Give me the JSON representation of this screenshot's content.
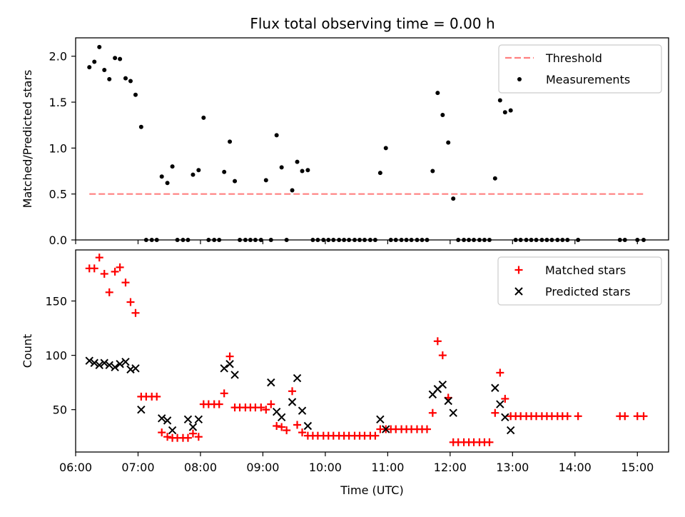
{
  "title": "Flux total observing time = 0.00 h",
  "chart_data": [
    {
      "type": "scatter",
      "panel": "top",
      "ylabel": "Matched/Predicted stars",
      "ylim": [
        0,
        2.2
      ],
      "yticks": [
        0.0,
        0.5,
        1.0,
        1.5,
        2.0
      ],
      "ytick_labels": [
        "0.0",
        "0.5",
        "1.0",
        "1.5",
        "2.0"
      ],
      "xlim": [
        6.0,
        15.5
      ],
      "legend_position": "top-right",
      "threshold": {
        "name": "Threshold",
        "value": 0.5,
        "x_range": [
          6.22,
          15.1
        ],
        "color": "#ff8080"
      },
      "series": [
        {
          "name": "Measurements",
          "color": "#000000",
          "marker": "dot",
          "x": [
            6.22,
            6.3,
            6.38,
            6.46,
            6.54,
            6.63,
            6.71,
            6.8,
            6.88,
            6.96,
            7.05,
            7.13,
            7.22,
            7.3,
            7.38,
            7.47,
            7.55,
            7.63,
            7.72,
            7.8,
            7.88,
            7.97,
            8.05,
            8.13,
            8.22,
            8.3,
            8.38,
            8.47,
            8.55,
            8.63,
            8.72,
            8.8,
            8.88,
            8.97,
            9.05,
            9.13,
            9.22,
            9.3,
            9.38,
            9.47,
            9.55,
            9.63,
            9.72,
            9.8,
            9.88,
            9.97,
            10.05,
            10.13,
            10.22,
            10.3,
            10.38,
            10.47,
            10.55,
            10.63,
            10.72,
            10.8,
            10.88,
            10.97,
            11.05,
            11.13,
            11.22,
            11.3,
            11.38,
            11.47,
            11.55,
            11.63,
            11.72,
            11.8,
            11.88,
            11.97,
            12.05,
            12.13,
            12.22,
            12.3,
            12.38,
            12.47,
            12.55,
            12.63,
            12.72,
            12.8,
            12.88,
            12.97,
            13.05,
            13.13,
            13.22,
            13.3,
            13.38,
            13.47,
            13.55,
            13.63,
            13.72,
            13.8,
            13.88,
            14.05,
            14.72,
            14.8,
            15.0,
            15.1
          ],
          "y": [
            1.88,
            1.94,
            2.1,
            1.85,
            1.75,
            1.98,
            1.97,
            1.76,
            1.73,
            1.58,
            1.23,
            0.0,
            0.0,
            0.0,
            0.69,
            0.62,
            0.8,
            0.0,
            0.0,
            0.0,
            0.71,
            0.76,
            1.33,
            0.0,
            0.0,
            0.0,
            0.74,
            1.07,
            0.64,
            0.0,
            0.0,
            0.0,
            0.0,
            0.0,
            0.65,
            0.0,
            1.14,
            0.79,
            0.0,
            0.54,
            0.85,
            0.75,
            0.76,
            0.0,
            0.0,
            0.0,
            0.0,
            0.0,
            0.0,
            0.0,
            0.0,
            0.0,
            0.0,
            0.0,
            0.0,
            0.0,
            0.73,
            1.0,
            0.0,
            0.0,
            0.0,
            0.0,
            0.0,
            0.0,
            0.0,
            0.0,
            0.75,
            1.6,
            1.36,
            1.06,
            0.45,
            0.0,
            0.0,
            0.0,
            0.0,
            0.0,
            0.0,
            0.0,
            0.67,
            1.52,
            1.39,
            1.41,
            0.0,
            0.0,
            0.0,
            0.0,
            0.0,
            0.0,
            0.0,
            0.0,
            0.0,
            0.0,
            0.0,
            0.0,
            0.0,
            0.0,
            0.0,
            0.0
          ]
        }
      ],
      "legend": [
        {
          "label": "Threshold",
          "marker": "dashed-line",
          "color": "#ff8080"
        },
        {
          "label": "Measurements",
          "marker": "dot",
          "color": "#000000"
        }
      ]
    },
    {
      "type": "scatter",
      "panel": "bottom",
      "ylabel": "Count",
      "xlabel": "Time (UTC)",
      "ylim": [
        11,
        197
      ],
      "yticks": [
        50,
        100,
        150
      ],
      "ytick_labels": [
        "50",
        "100",
        "150"
      ],
      "xlim": [
        6.0,
        15.5
      ],
      "xticks": [
        6,
        7,
        8,
        9,
        10,
        11,
        12,
        13,
        14,
        15
      ],
      "xtick_labels": [
        "06:00",
        "07:00",
        "08:00",
        "09:00",
        "10:00",
        "11:00",
        "12:00",
        "13:00",
        "14:00",
        "15:00"
      ],
      "legend_position": "top-right",
      "series": [
        {
          "name": "Matched stars",
          "color": "#ff0000",
          "marker": "plus",
          "x": [
            6.22,
            6.3,
            6.38,
            6.46,
            6.54,
            6.63,
            6.71,
            6.8,
            6.88,
            6.96,
            7.05,
            7.13,
            7.22,
            7.3,
            7.38,
            7.47,
            7.55,
            7.63,
            7.72,
            7.8,
            7.88,
            7.97,
            8.05,
            8.13,
            8.22,
            8.3,
            8.38,
            8.47,
            8.55,
            8.63,
            8.72,
            8.8,
            8.88,
            8.97,
            9.05,
            9.13,
            9.22,
            9.3,
            9.38,
            9.47,
            9.55,
            9.63,
            9.72,
            9.8,
            9.88,
            9.97,
            10.05,
            10.13,
            10.22,
            10.3,
            10.38,
            10.47,
            10.55,
            10.63,
            10.72,
            10.8,
            10.88,
            10.97,
            11.05,
            11.13,
            11.22,
            11.3,
            11.38,
            11.47,
            11.55,
            11.63,
            11.72,
            11.8,
            11.88,
            11.97,
            12.05,
            12.13,
            12.22,
            12.3,
            12.38,
            12.47,
            12.55,
            12.63,
            12.72,
            12.8,
            12.88,
            12.97,
            13.05,
            13.13,
            13.22,
            13.3,
            13.38,
            13.47,
            13.55,
            13.63,
            13.72,
            13.8,
            13.88,
            14.05,
            14.72,
            14.8,
            15.0,
            15.1
          ],
          "y": [
            180,
            180,
            190,
            175,
            158,
            177,
            181,
            167,
            149,
            139,
            62,
            62,
            62,
            62,
            29,
            25,
            24,
            24,
            24,
            24,
            28,
            25,
            55,
            55,
            55,
            55,
            65,
            99,
            52,
            52,
            52,
            52,
            52,
            52,
            50,
            55,
            35,
            34,
            31,
            67,
            36,
            29,
            26,
            26,
            26,
            26,
            26,
            26,
            26,
            26,
            26,
            26,
            26,
            26,
            26,
            26,
            32,
            32,
            32,
            32,
            32,
            32,
            32,
            32,
            32,
            32,
            47,
            113,
            100,
            61,
            20,
            20,
            20,
            20,
            20,
            20,
            20,
            20,
            47,
            84,
            60,
            44,
            44,
            44,
            44,
            44,
            44,
            44,
            44,
            44,
            44,
            44,
            44,
            44,
            44,
            44,
            44,
            44
          ]
        },
        {
          "name": "Predicted stars",
          "color": "#000000",
          "marker": "x",
          "x": [
            6.22,
            6.3,
            6.38,
            6.46,
            6.54,
            6.63,
            6.71,
            6.8,
            6.88,
            6.96,
            7.05,
            7.38,
            7.47,
            7.55,
            7.8,
            7.88,
            7.97,
            8.38,
            8.47,
            8.55,
            9.13,
            9.22,
            9.3,
            9.47,
            9.55,
            9.63,
            9.72,
            10.88,
            10.97,
            11.72,
            11.8,
            11.88,
            11.97,
            12.05,
            12.72,
            12.8,
            12.88,
            12.97
          ],
          "y": [
            95,
            93,
            91,
            93,
            91,
            89,
            92,
            94,
            87,
            88,
            50,
            42,
            40,
            31,
            41,
            34,
            41,
            88,
            92,
            82,
            75,
            48,
            43,
            57,
            79,
            49,
            35,
            41,
            32,
            64,
            69,
            73,
            58,
            47,
            70,
            55,
            43,
            31
          ]
        }
      ],
      "legend": [
        {
          "label": "Matched stars",
          "marker": "plus",
          "color": "#ff0000"
        },
        {
          "label": "Predicted stars",
          "marker": "x",
          "color": "#000000"
        }
      ]
    }
  ]
}
